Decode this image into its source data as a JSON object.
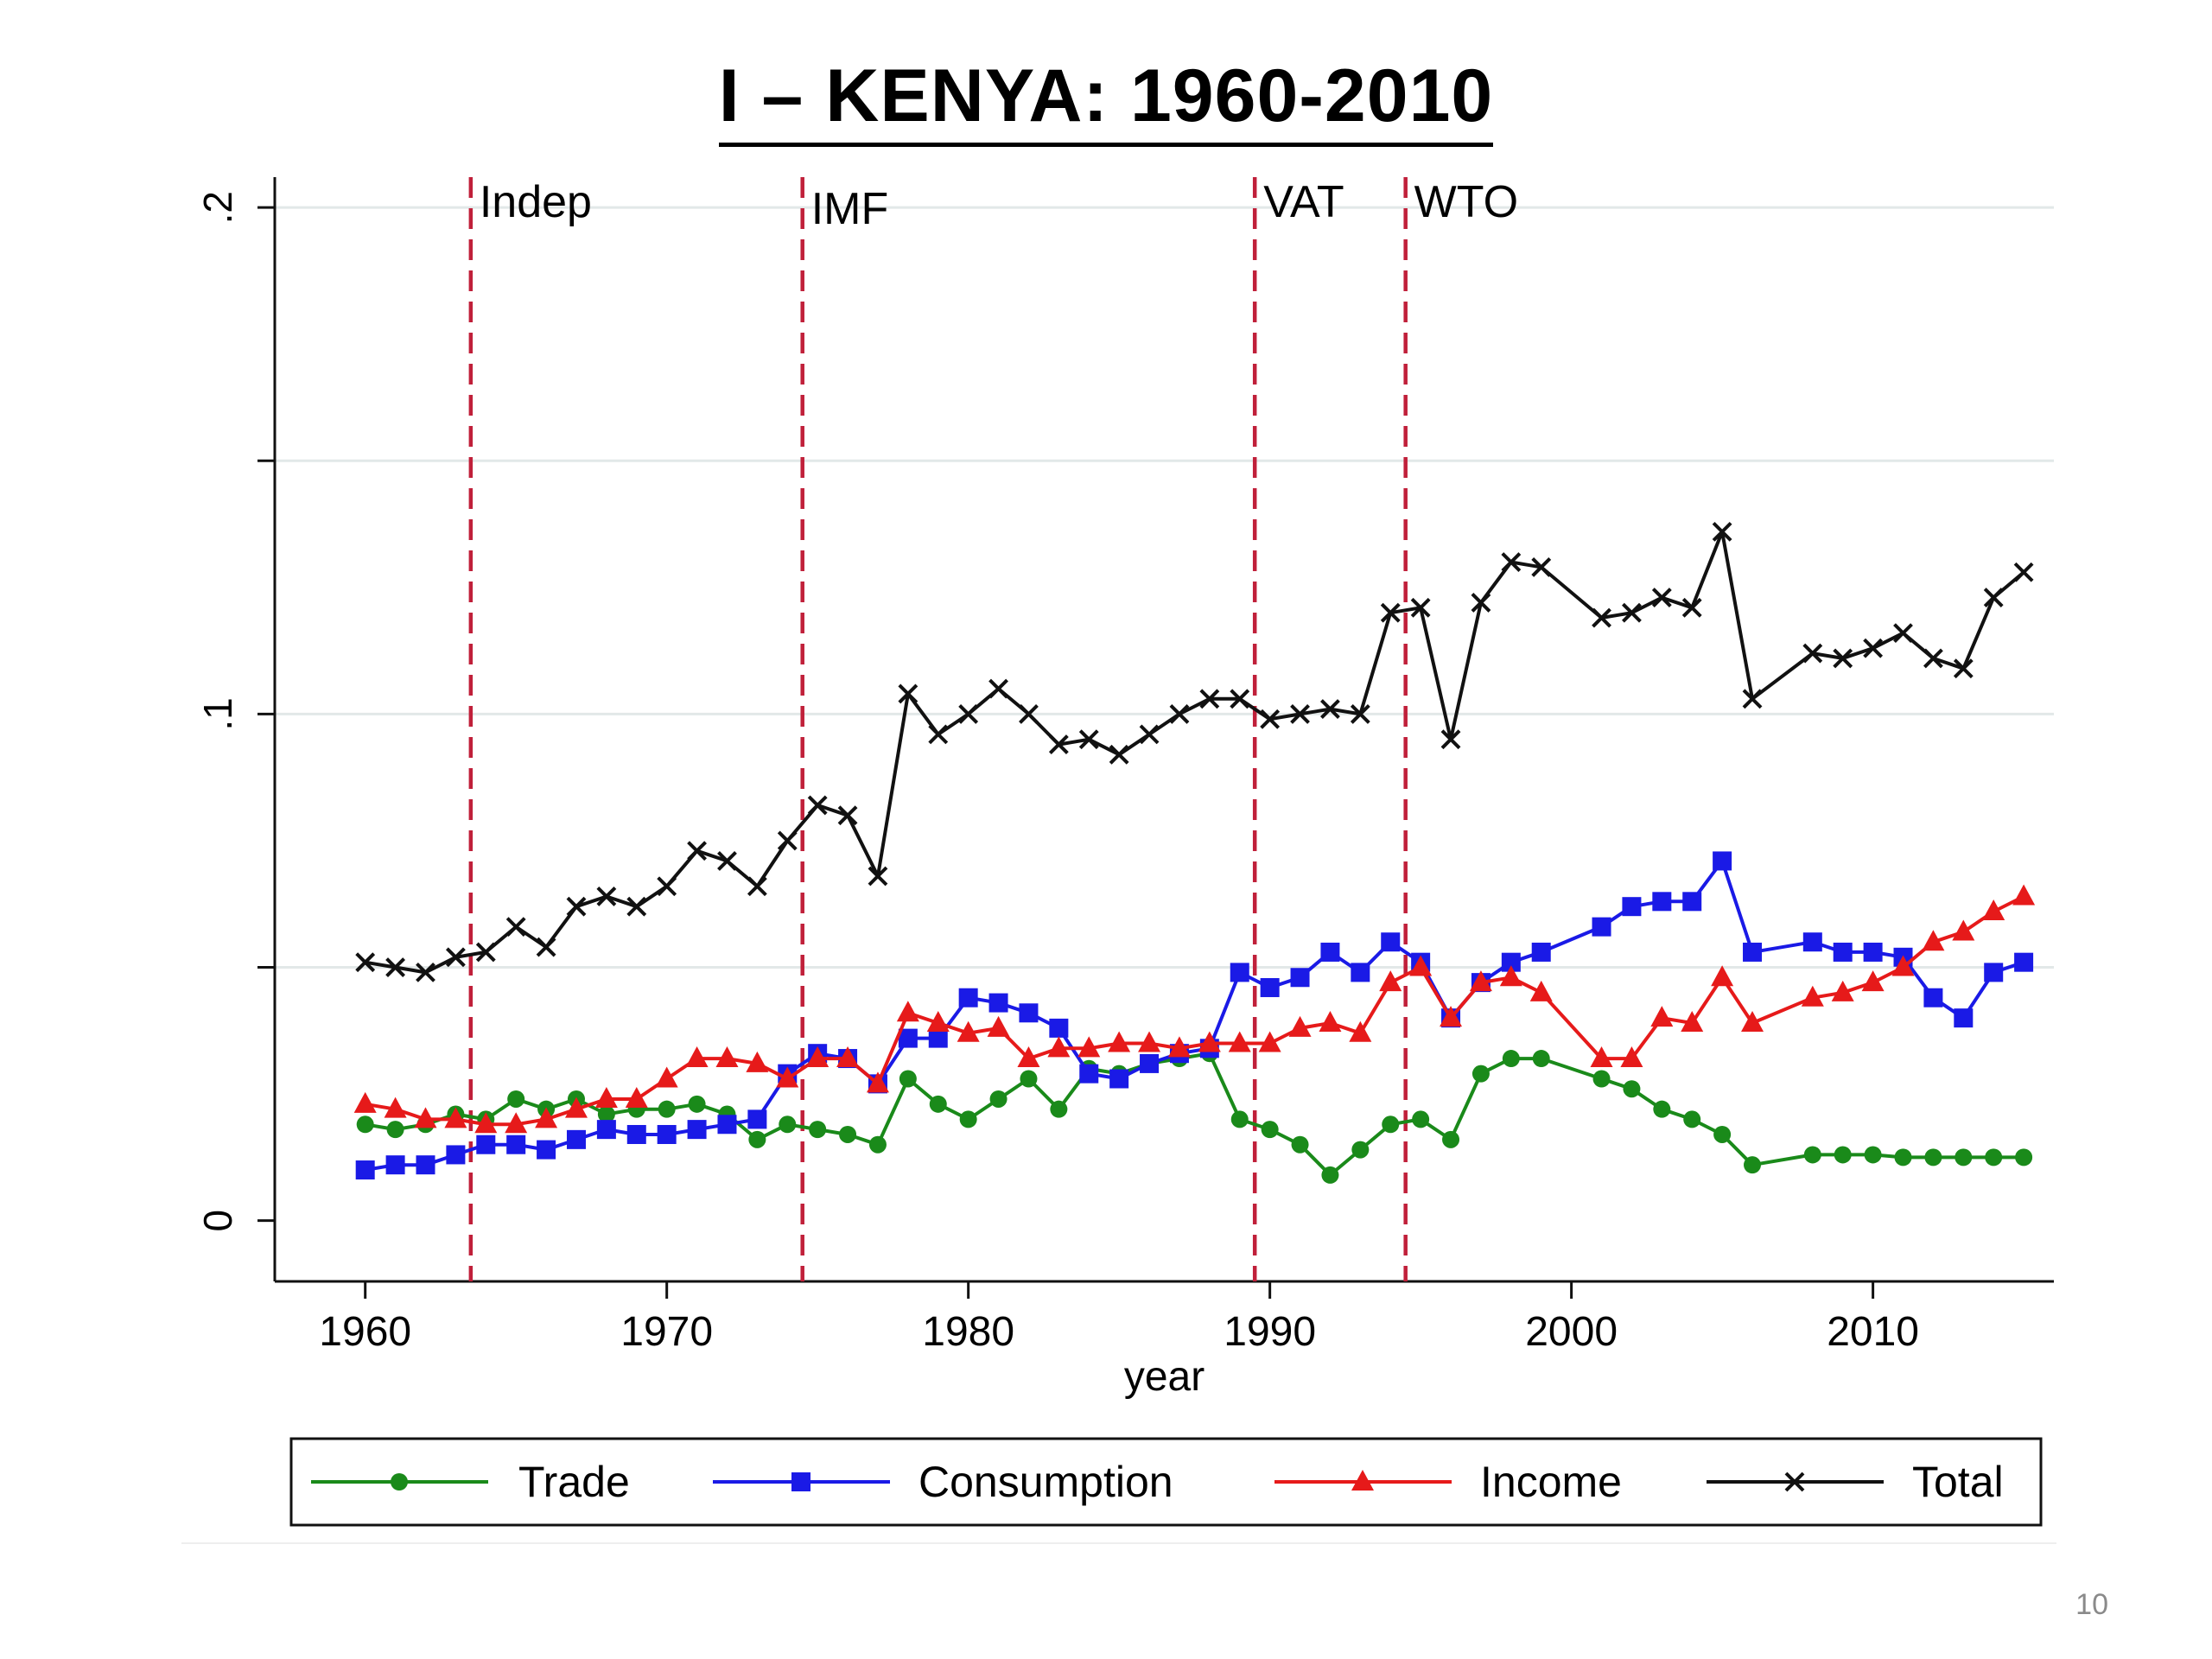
{
  "slide": {
    "title": "I – KENYA: 1960-2010",
    "page_number": "10"
  },
  "chart_data": {
    "type": "line",
    "title": "",
    "xlabel": "year",
    "ylabel": "",
    "xlim": [
      1957,
      2016
    ],
    "ylim": [
      -0.012,
      0.206
    ],
    "x_ticks": [
      1960,
      1970,
      1980,
      1990,
      2000,
      2010
    ],
    "x_tick_labels": [
      "1960",
      "1970",
      "1980",
      "1990",
      "2000",
      "2010"
    ],
    "y_ticks": [
      0,
      0.05,
      0.1,
      0.15,
      0.2
    ],
    "y_tick_labels": [
      "0",
      "",
      ".1",
      "",
      ".2"
    ],
    "grid": true,
    "legend_position": "bottom",
    "events": [
      {
        "x": 1963.5,
        "label": "Indep"
      },
      {
        "x": 1974.5,
        "label": "IMF"
      },
      {
        "x": 1989.5,
        "label": "VAT"
      },
      {
        "x": 1994.5,
        "label": "WTO"
      }
    ],
    "event_color": "#c0203a",
    "series": [
      {
        "name": "Trade",
        "color": "#1a8a1a",
        "marker": "circle",
        "x": [
          1960,
          1961,
          1962,
          1963,
          1964,
          1965,
          1966,
          1967,
          1968,
          1969,
          1970,
          1971,
          1972,
          1973,
          1974,
          1975,
          1976,
          1977,
          1978,
          1979,
          1980,
          1981,
          1982,
          1983,
          1984,
          1985,
          1986,
          1987,
          1988,
          1989,
          1990,
          1991,
          1992,
          1993,
          1994,
          1995,
          1996,
          1997,
          1998,
          1999,
          2001,
          2002,
          2003,
          2004,
          2005,
          2006,
          2008,
          2009,
          2010,
          2011,
          2012,
          2013,
          2014,
          2015
        ],
        "y": [
          0.019,
          0.018,
          0.019,
          0.021,
          0.02,
          0.024,
          0.022,
          0.024,
          0.021,
          0.022,
          0.022,
          0.023,
          0.021,
          0.016,
          0.019,
          0.018,
          0.017,
          0.015,
          0.028,
          0.023,
          0.02,
          0.024,
          0.028,
          0.022,
          0.03,
          0.029,
          0.031,
          0.032,
          0.033,
          0.02,
          0.018,
          0.015,
          0.009,
          0.014,
          0.019,
          0.02,
          0.016,
          0.029,
          0.032,
          0.032,
          0.028,
          0.026,
          0.022,
          0.02,
          0.017,
          0.011,
          0.013,
          0.013,
          0.013,
          0.0125,
          0.0125,
          0.0125,
          0.0125,
          0.0125
        ]
      },
      {
        "name": "Consumption",
        "color": "#1a1ae6",
        "marker": "square",
        "x": [
          1960,
          1961,
          1962,
          1963,
          1964,
          1965,
          1966,
          1967,
          1968,
          1969,
          1970,
          1971,
          1972,
          1973,
          1974,
          1975,
          1976,
          1977,
          1978,
          1979,
          1980,
          1981,
          1982,
          1983,
          1984,
          1985,
          1986,
          1987,
          1988,
          1989,
          1990,
          1991,
          1992,
          1993,
          1994,
          1995,
          1996,
          1997,
          1998,
          1999,
          2001,
          2002,
          2003,
          2004,
          2005,
          2006,
          2008,
          2009,
          2010,
          2011,
          2012,
          2013,
          2014,
          2015
        ],
        "y": [
          0.01,
          0.011,
          0.011,
          0.013,
          0.015,
          0.015,
          0.014,
          0.016,
          0.018,
          0.017,
          0.017,
          0.018,
          0.019,
          0.02,
          0.029,
          0.033,
          0.032,
          0.027,
          0.036,
          0.036,
          0.044,
          0.043,
          0.041,
          0.038,
          0.029,
          0.028,
          0.031,
          0.033,
          0.034,
          0.049,
          0.046,
          0.048,
          0.053,
          0.049,
          0.055,
          0.051,
          0.04,
          0.047,
          0.051,
          0.053,
          0.058,
          0.062,
          0.063,
          0.063,
          0.071,
          0.053,
          0.055,
          0.053,
          0.053,
          0.052,
          0.044,
          0.04,
          0.049,
          0.051
        ]
      },
      {
        "name": "Income",
        "color": "#e61a1a",
        "marker": "triangle",
        "x": [
          1960,
          1961,
          1962,
          1963,
          1964,
          1965,
          1966,
          1967,
          1968,
          1969,
          1970,
          1971,
          1972,
          1973,
          1974,
          1975,
          1976,
          1977,
          1978,
          1979,
          1980,
          1981,
          1982,
          1983,
          1984,
          1985,
          1986,
          1987,
          1988,
          1989,
          1990,
          1991,
          1992,
          1993,
          1994,
          1995,
          1996,
          1997,
          1998,
          1999,
          2001,
          2002,
          2003,
          2004,
          2005,
          2006,
          2008,
          2009,
          2010,
          2011,
          2012,
          2013,
          2014,
          2015
        ],
        "y": [
          0.023,
          0.022,
          0.02,
          0.02,
          0.019,
          0.019,
          0.02,
          0.022,
          0.024,
          0.024,
          0.028,
          0.032,
          0.032,
          0.031,
          0.028,
          0.032,
          0.032,
          0.027,
          0.041,
          0.039,
          0.037,
          0.038,
          0.032,
          0.034,
          0.034,
          0.035,
          0.035,
          0.034,
          0.035,
          0.035,
          0.035,
          0.038,
          0.039,
          0.037,
          0.047,
          0.05,
          0.04,
          0.047,
          0.048,
          0.045,
          0.032,
          0.032,
          0.04,
          0.039,
          0.048,
          0.039,
          0.044,
          0.045,
          0.047,
          0.05,
          0.055,
          0.057,
          0.061,
          0.064
        ]
      },
      {
        "name": "Total",
        "color": "#111111",
        "marker": "x",
        "x": [
          1960,
          1961,
          1962,
          1963,
          1964,
          1965,
          1966,
          1967,
          1968,
          1969,
          1970,
          1971,
          1972,
          1973,
          1974,
          1975,
          1976,
          1977,
          1978,
          1979,
          1980,
          1981,
          1982,
          1983,
          1984,
          1985,
          1986,
          1987,
          1988,
          1989,
          1990,
          1991,
          1992,
          1993,
          1994,
          1995,
          1996,
          1997,
          1998,
          1999,
          2001,
          2002,
          2003,
          2004,
          2005,
          2006,
          2008,
          2009,
          2010,
          2011,
          2012,
          2013,
          2014,
          2015
        ],
        "y": [
          0.051,
          0.05,
          0.049,
          0.052,
          0.053,
          0.058,
          0.054,
          0.062,
          0.064,
          0.062,
          0.066,
          0.073,
          0.071,
          0.066,
          0.075,
          0.082,
          0.08,
          0.068,
          0.104,
          0.096,
          0.1,
          0.105,
          0.1,
          0.094,
          0.095,
          0.092,
          0.096,
          0.1,
          0.103,
          0.103,
          0.099,
          0.1,
          0.101,
          0.1,
          0.12,
          0.121,
          0.095,
          0.122,
          0.13,
          0.129,
          0.119,
          0.12,
          0.123,
          0.121,
          0.136,
          0.103,
          0.112,
          0.111,
          0.113,
          0.116,
          0.111,
          0.109,
          0.123,
          0.128
        ]
      }
    ]
  }
}
